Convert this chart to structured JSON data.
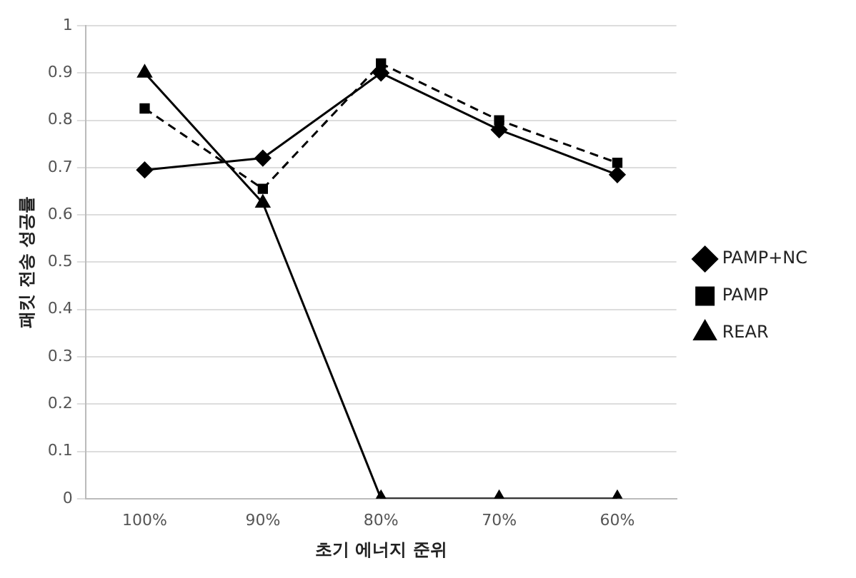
{
  "chart_data": {
    "type": "line",
    "xlabel": "초기 에너지 준위",
    "ylabel": "패킷 전송 성공률",
    "categories": [
      "100%",
      "90%",
      "80%",
      "70%",
      "60%"
    ],
    "series": [
      {
        "name": "PAMP+NC",
        "color": "#000000",
        "marker": "diamond",
        "line_style": "solid",
        "values": [
          0.695,
          0.72,
          0.9,
          0.78,
          0.685
        ]
      },
      {
        "name": "PAMP",
        "color": "#000000",
        "marker": "square",
        "line_style": "dashed",
        "values": [
          0.825,
          0.655,
          0.92,
          0.8,
          0.71
        ]
      },
      {
        "name": "REAR",
        "color": "#000000",
        "marker": "triangle",
        "line_style": "solid",
        "values": [
          0.9,
          0.625,
          0,
          0,
          0
        ]
      }
    ],
    "ylim": [
      0,
      1
    ],
    "yticks": [
      0,
      0.1,
      0.2,
      0.3,
      0.4,
      0.5,
      0.6,
      0.7,
      0.8,
      0.9,
      1
    ],
    "grid": "y",
    "legend": "right"
  }
}
